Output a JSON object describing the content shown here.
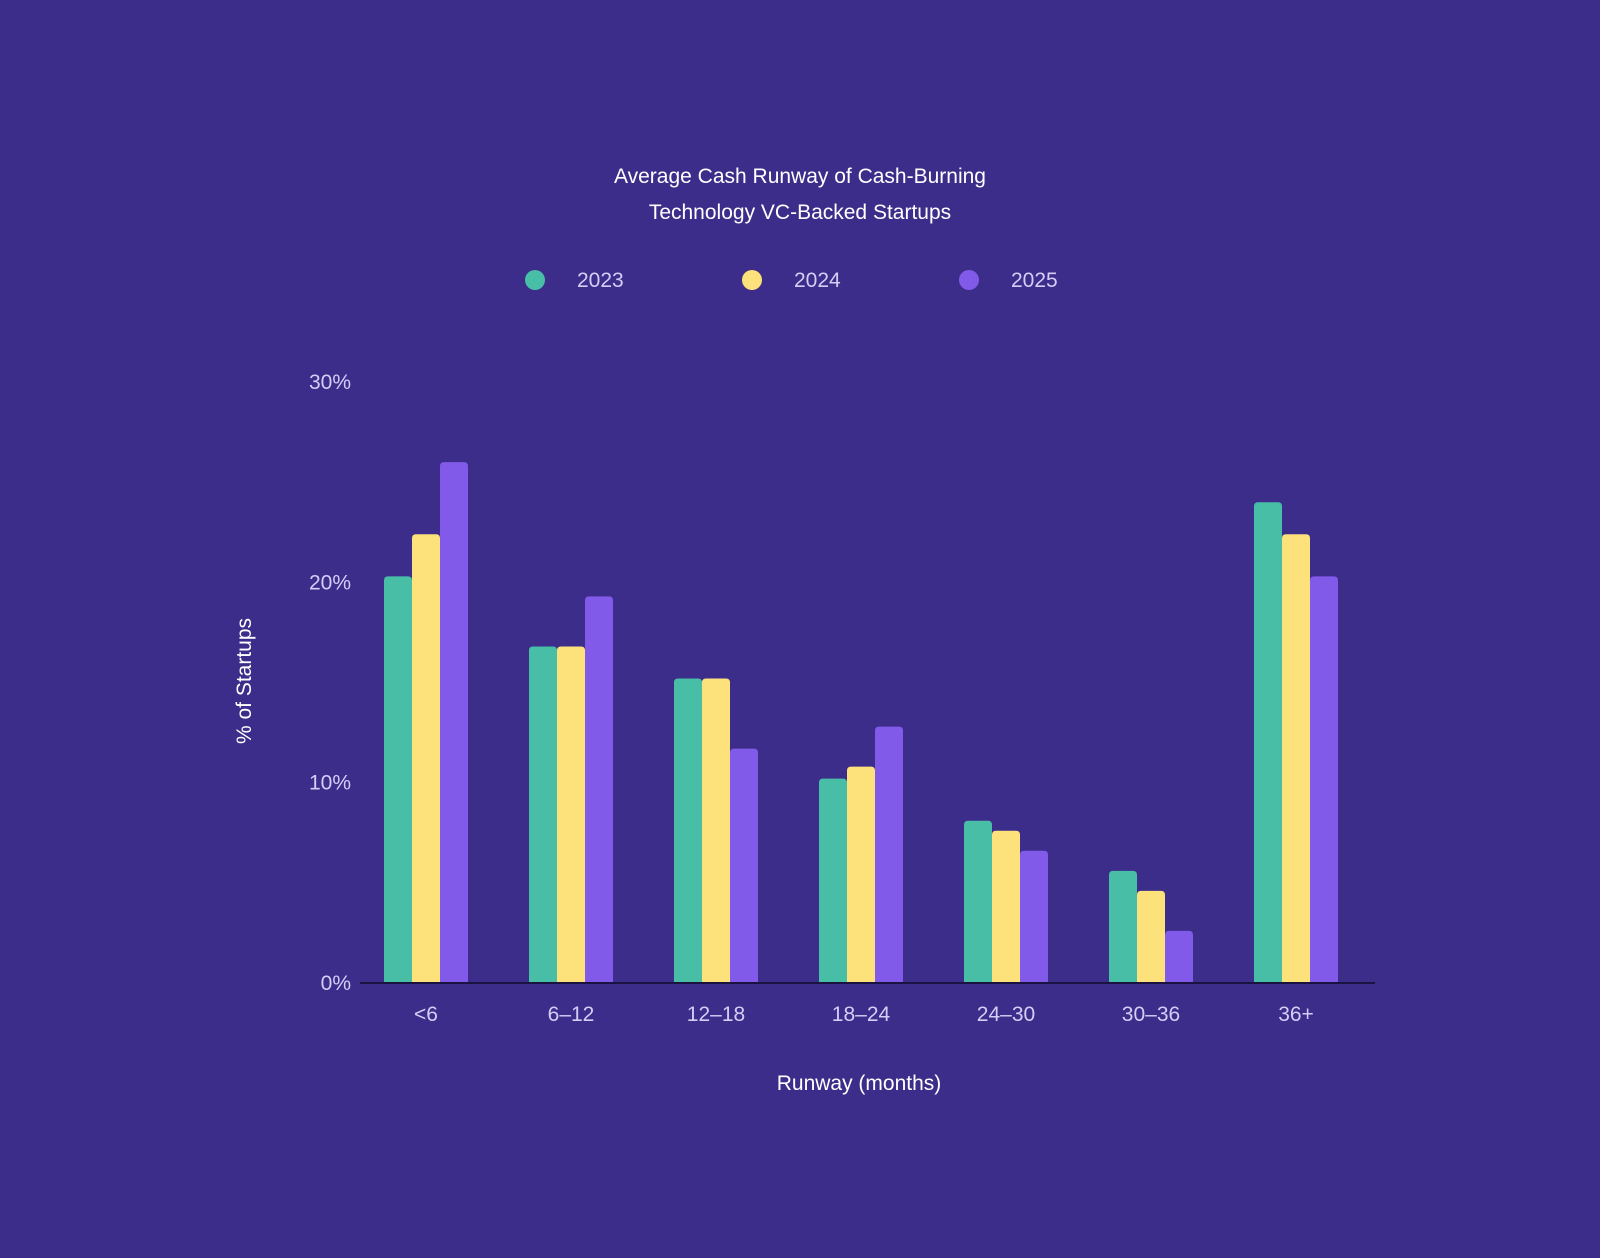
{
  "chart_data": {
    "type": "bar",
    "title_lines": [
      "Average Cash Runway of Cash-Burning",
      "Technology VC-Backed Startups"
    ],
    "xlabel": "Runway (months)",
    "ylabel": "% of Startups",
    "categories": [
      "<6",
      "6–12",
      "12–18",
      "18–24",
      "24–30",
      "30–36",
      "36+"
    ],
    "series": [
      {
        "name": "2023",
        "color": "#48bea6",
        "values": [
          20.3,
          16.8,
          15.2,
          10.2,
          8.1,
          5.6,
          24.0
        ]
      },
      {
        "name": "2024",
        "color": "#fde17a",
        "values": [
          22.4,
          16.8,
          15.2,
          10.8,
          7.6,
          4.6,
          22.4
        ]
      },
      {
        "name": "2025",
        "color": "#825aea",
        "values": [
          26.0,
          19.3,
          11.7,
          12.8,
          6.6,
          2.6,
          20.3
        ]
      }
    ],
    "ylim": [
      0,
      30
    ],
    "yticks": [
      0,
      10,
      20,
      30
    ],
    "ytick_labels": [
      "0%",
      "10%",
      "20%",
      "30%"
    ],
    "grid": false,
    "legend_position": "top-center"
  }
}
